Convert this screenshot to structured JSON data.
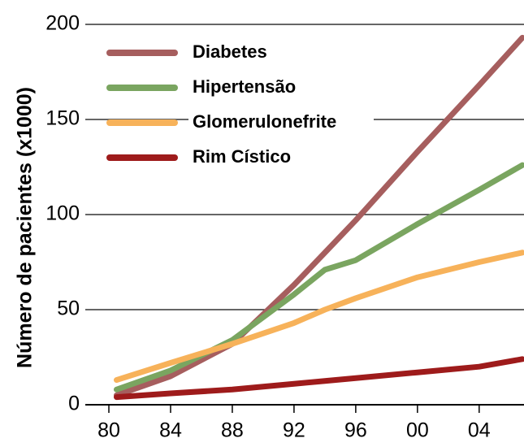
{
  "chart_data": {
    "type": "line",
    "y_label": "Número de pacientes (x1000)",
    "x": [
      1980.5,
      1984,
      1988,
      1992,
      1994,
      1996,
      2000,
      2004,
      2006.8
    ],
    "series": [
      {
        "name": "Diabetes",
        "color": "#a65e5e",
        "values": [
          5,
          15,
          32,
          63,
          80,
          97,
          133,
          168,
          193
        ]
      },
      {
        "name": "Hipertensão",
        "color": "#7aa560",
        "values": [
          8,
          18,
          34,
          58,
          71,
          76,
          95,
          113,
          126
        ]
      },
      {
        "name": "Glomerulonefrite",
        "color": "#f7b25a",
        "values": [
          13,
          22,
          32,
          43,
          50,
          56,
          67,
          75,
          80
        ]
      },
      {
        "name": "Rim Cístico",
        "color": "#9e1b1b",
        "values": [
          4,
          6,
          8,
          11,
          12.5,
          14,
          17,
          20,
          24
        ]
      }
    ],
    "xlim": [
      1980,
      2006.8
    ],
    "xticks": [
      {
        "value": 1980,
        "label": "80"
      },
      {
        "value": 1984,
        "label": "84"
      },
      {
        "value": 1988,
        "label": "88"
      },
      {
        "value": 1992,
        "label": "92"
      },
      {
        "value": 1996,
        "label": "96"
      },
      {
        "value": 2000,
        "label": "00"
      },
      {
        "value": 2004,
        "label": "04"
      }
    ],
    "ylim": [
      0,
      200
    ],
    "yticks": [
      0,
      50,
      100,
      150,
      200
    ],
    "grid": true,
    "legend": "upper left"
  }
}
